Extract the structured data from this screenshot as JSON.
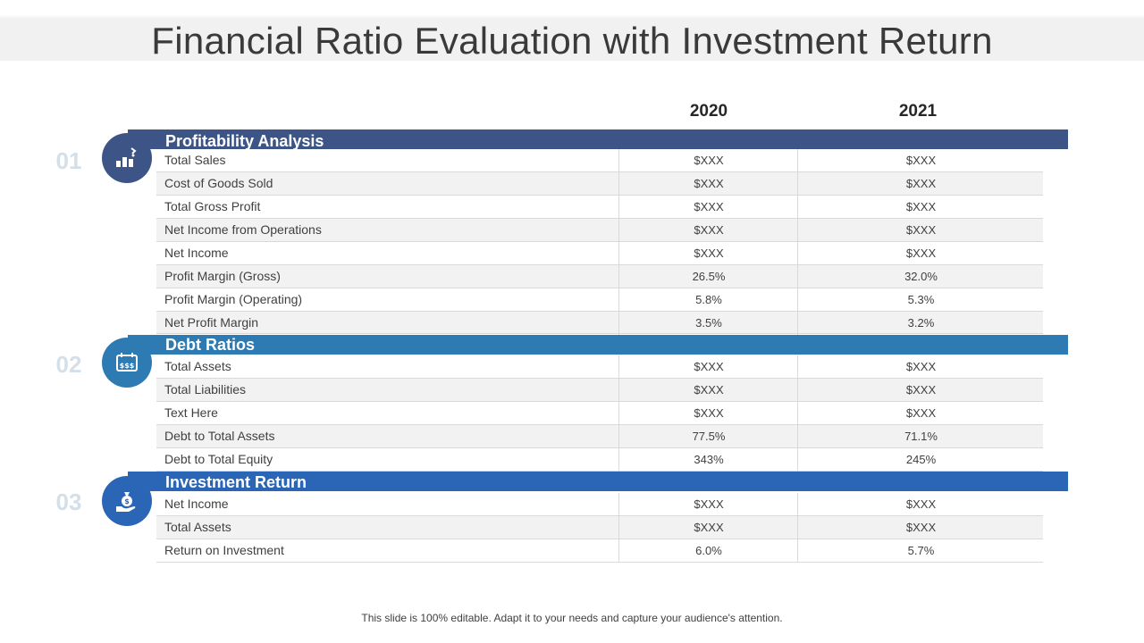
{
  "title": "Financial Ratio Evaluation with Investment Return",
  "years": [
    "2020",
    "2021"
  ],
  "colors": {
    "section1": "#3d5586",
    "section2": "#2e7ab2",
    "section3": "#2b66b6",
    "number": "#d5dfe8"
  },
  "sections": [
    {
      "number": "01",
      "heading": "Profitability Analysis",
      "icon": "bar-chart-icon",
      "rows": [
        {
          "label": "Total Sales",
          "v2020": "$XXX",
          "v2021": "$XXX"
        },
        {
          "label": "Cost of Goods Sold",
          "v2020": "$XXX",
          "v2021": "$XXX"
        },
        {
          "label": "Total Gross Profit",
          "v2020": "$XXX",
          "v2021": "$XXX"
        },
        {
          "label": "Net Income from Operations",
          "v2020": "$XXX",
          "v2021": "$XXX"
        },
        {
          "label": "Net Income",
          "v2020": "$XXX",
          "v2021": "$XXX"
        },
        {
          "label": "Profit Margin (Gross)",
          "v2020": "26.5%",
          "v2021": "32.0%"
        },
        {
          "label": "Profit Margin (Operating)",
          "v2020": "5.8%",
          "v2021": "5.3%"
        },
        {
          "label": "Net Profit Margin",
          "v2020": "3.5%",
          "v2021": "3.2%"
        }
      ]
    },
    {
      "number": "02",
      "heading": "Debt Ratios",
      "icon": "money-calendar-icon",
      "rows": [
        {
          "label": "Total Assets",
          "v2020": "$XXX",
          "v2021": "$XXX"
        },
        {
          "label": "Total Liabilities",
          "v2020": "$XXX",
          "v2021": "$XXX"
        },
        {
          "label": "Text Here",
          "v2020": "$XXX",
          "v2021": "$XXX"
        },
        {
          "label": "Debt to Total Assets",
          "v2020": "77.5%",
          "v2021": "71.1%"
        },
        {
          "label": "Debt to Total Equity",
          "v2020": "343%",
          "v2021": "245%"
        }
      ]
    },
    {
      "number": "03",
      "heading": "Investment Return",
      "icon": "money-bag-hand-icon",
      "rows": [
        {
          "label": "Net Income",
          "v2020": "$XXX",
          "v2021": "$XXX"
        },
        {
          "label": "Total Assets",
          "v2020": "$XXX",
          "v2021": "$XXX"
        },
        {
          "label": "Return on Investment",
          "v2020": "6.0%",
          "v2021": "5.7%"
        }
      ]
    }
  ],
  "footer": "This slide is 100% editable. Adapt it to your needs and capture your audience's attention."
}
